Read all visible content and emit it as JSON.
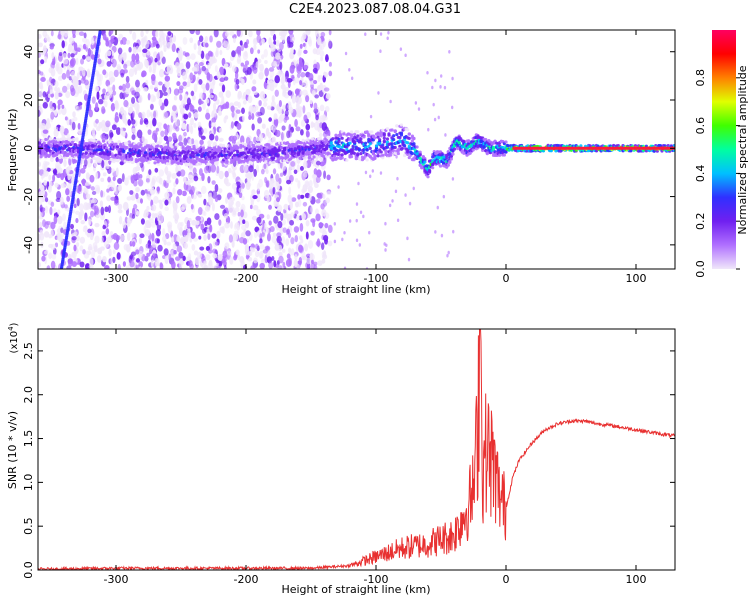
{
  "title": "C2E4.2023.087.08.04.G31",
  "chart_data": [
    {
      "type": "heatmap",
      "xlabel": "Height of straight line (km)",
      "ylabel": "Frequency (Hz)",
      "xlim": [
        -360,
        130
      ],
      "ylim": [
        -50,
        49
      ],
      "x_ticks": [
        -300,
        -200,
        -100,
        0,
        100
      ],
      "y_ticks": [
        -40,
        -20,
        0,
        20,
        40
      ],
      "grid": false,
      "colorbar": {
        "label": "Normalized spectral amplitude",
        "range": [
          0,
          1
        ],
        "ticks": [
          0.0,
          0.2,
          0.4,
          0.6,
          0.8
        ],
        "colormap": [
          "#f0e6fa",
          "#b070ff",
          "#7020f0",
          "#3030ff",
          "#00c0ff",
          "#00ffa0",
          "#40ff00",
          "#e0ff00",
          "#ff8000",
          "#ff0000",
          "#ff0060"
        ]
      },
      "ridge": [
        {
          "x": -330,
          "y": 0
        },
        {
          "x": -250,
          "y": -3
        },
        {
          "x": -180,
          "y": -2
        },
        {
          "x": -130,
          "y": 1
        },
        {
          "x": -100,
          "y": 1
        },
        {
          "x": -80,
          "y": 4
        },
        {
          "x": -70,
          "y": -1
        },
        {
          "x": -60,
          "y": -9
        },
        {
          "x": -55,
          "y": -4
        },
        {
          "x": -45,
          "y": -5
        },
        {
          "x": -38,
          "y": 3
        },
        {
          "x": -30,
          "y": 0
        },
        {
          "x": -22,
          "y": 3
        },
        {
          "x": -12,
          "y": 0
        },
        {
          "x": 0,
          "y": 0
        },
        {
          "x": 130,
          "y": 0
        }
      ]
    },
    {
      "type": "line",
      "xlabel": "Height of straight line (km)",
      "ylabel": "SNR (10 * v/v)",
      "yscale_label": "(x10",
      "yscale_exp": "4",
      "yscale_close": ")",
      "xlim": [
        -360,
        130
      ],
      "ylim": [
        0,
        2.75
      ],
      "x_ticks": [
        -300,
        -200,
        -100,
        0,
        100
      ],
      "y_ticks": [
        0.0,
        0.5,
        1.0,
        1.5,
        2.0,
        2.5
      ],
      "grid": false,
      "series": [
        {
          "color": "#e83030",
          "x": [
            -360,
            -300,
            -200,
            -150,
            -120,
            -100,
            -80,
            -60,
            -50,
            -40,
            -35,
            -30,
            -25,
            -22,
            -20,
            -18,
            -15,
            -10,
            -5,
            0,
            5,
            10,
            20,
            30,
            40,
            50,
            60,
            70,
            80,
            100,
            120,
            130
          ],
          "y": [
            0.01,
            0.02,
            0.02,
            0.02,
            0.05,
            0.15,
            0.25,
            0.3,
            0.35,
            0.4,
            0.55,
            0.7,
            0.9,
            1.5,
            2.75,
            1.1,
            1.4,
            1.2,
            0.85,
            0.7,
            1.05,
            1.25,
            1.45,
            1.6,
            1.67,
            1.7,
            1.7,
            1.67,
            1.65,
            1.6,
            1.55,
            1.53
          ]
        }
      ]
    }
  ]
}
